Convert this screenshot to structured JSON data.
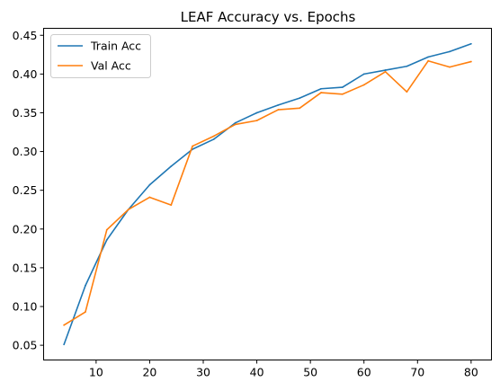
{
  "chart_data": {
    "type": "line",
    "title": "LEAF Accuracy vs. Epochs",
    "xlabel": "",
    "ylabel": "",
    "xlim": [
      0.2,
      83.8
    ],
    "ylim": [
      0.031,
      0.459
    ],
    "xticks": [
      10,
      20,
      30,
      40,
      50,
      60,
      70,
      80
    ],
    "yticks": [
      0.05,
      0.1,
      0.15,
      0.2,
      0.25,
      0.3,
      0.35,
      0.4,
      0.45
    ],
    "grid": false,
    "legend_position": "top-left",
    "x": [
      4,
      8,
      12,
      16,
      20,
      24,
      28,
      32,
      36,
      40,
      44,
      48,
      52,
      56,
      60,
      64,
      68,
      72,
      76,
      80
    ],
    "series": [
      {
        "name": "Train Acc",
        "color": "#1f77b4",
        "values": [
          0.051,
          0.127,
          0.186,
          0.225,
          0.257,
          0.281,
          0.303,
          0.316,
          0.337,
          0.35,
          0.36,
          0.369,
          0.381,
          0.383,
          0.4,
          0.405,
          0.41,
          0.422,
          0.429,
          0.439
        ]
      },
      {
        "name": "Val Acc",
        "color": "#ff7f0e",
        "values": [
          0.076,
          0.093,
          0.199,
          0.225,
          0.241,
          0.231,
          0.307,
          0.32,
          0.335,
          0.34,
          0.354,
          0.356,
          0.376,
          0.374,
          0.386,
          0.403,
          0.377,
          0.417,
          0.409,
          0.416
        ]
      }
    ]
  }
}
